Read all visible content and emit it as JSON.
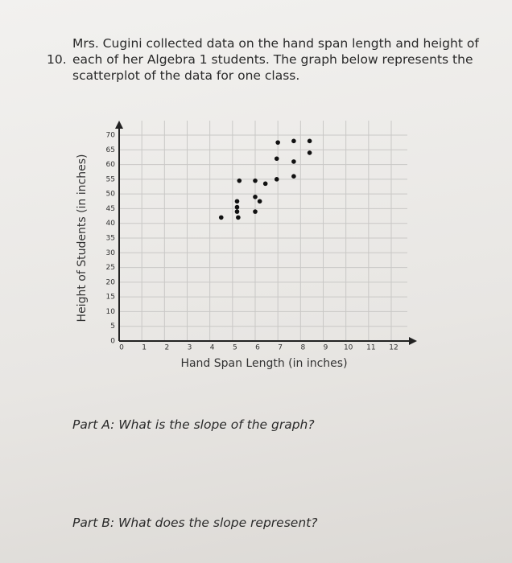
{
  "question": {
    "number": "10.",
    "text": "Mrs. Cugini collected data on the hand span length and height of each of her Algebra 1 students. The graph below represents the scatterplot of the data for one class."
  },
  "chart_data": {
    "type": "scatter",
    "x_label": "Hand Span Length (in inches)",
    "y_label": "Height of Students (in inches)",
    "x": [
      4.5,
      5.2,
      5.2,
      5.2,
      5.25,
      5.3,
      6,
      6,
      6.2,
      6,
      6.45,
      6.95,
      6.95,
      7,
      7.7,
      7.7,
      7.7,
      8.4,
      8.4
    ],
    "values": [
      42,
      47.5,
      45.5,
      44,
      42,
      54.5,
      54.5,
      49,
      47.5,
      44,
      53.5,
      55,
      62,
      67.5,
      68,
      61,
      56,
      64,
      68
    ],
    "color": "#111111",
    "xlim": [
      0,
      12
    ],
    "ylim": [
      0,
      70
    ],
    "xticks": [
      0,
      1,
      2,
      3,
      4,
      5,
      6,
      7,
      8,
      9,
      10,
      11,
      12
    ],
    "yticks": [
      0,
      5,
      10,
      15,
      20,
      25,
      30,
      35,
      40,
      45,
      50,
      55,
      60,
      65,
      70
    ],
    "grid": true
  },
  "part_a": "Part A: What is the slope of the graph?",
  "part_b": "Part B: What does the slope represent?"
}
